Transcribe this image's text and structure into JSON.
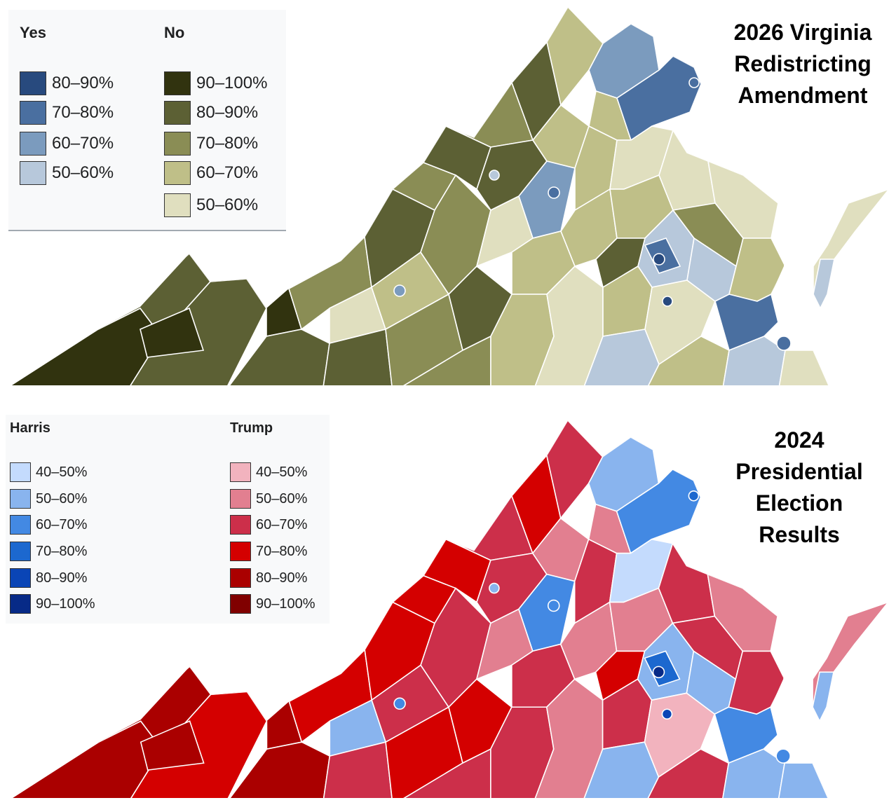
{
  "map_top": {
    "title_lines": [
      "2026 Virginia",
      "Redistricting",
      "Amendment"
    ],
    "legend": {
      "yes_header": "Yes",
      "no_header": "No",
      "yes_items": [
        {
          "label": "80–90%",
          "color": "#284a7e"
        },
        {
          "label": "70–80%",
          "color": "#4a6fa0"
        },
        {
          "label": "60–70%",
          "color": "#7b9bbe"
        },
        {
          "label": "50–60%",
          "color": "#b7c8db"
        }
      ],
      "no_items": [
        {
          "label": "90–100%",
          "color": "#31330f"
        },
        {
          "label": "80–90%",
          "color": "#5c6034"
        },
        {
          "label": "70–80%",
          "color": "#8a8d55"
        },
        {
          "label": "60–70%",
          "color": "#bfbf88"
        },
        {
          "label": "50–60%",
          "color": "#e0dfbf"
        }
      ]
    }
  },
  "map_bottom": {
    "title_lines": [
      "2024",
      "Presidential",
      "Election",
      "Results"
    ],
    "legend": {
      "harris_header": "Harris",
      "trump_header": "Trump",
      "harris_items": [
        {
          "label": "40–50%",
          "color": "#c4dbfd"
        },
        {
          "label": "50–60%",
          "color": "#89b4ee"
        },
        {
          "label": "60–70%",
          "color": "#4389e3"
        },
        {
          "label": "70–80%",
          "color": "#1c68cf"
        },
        {
          "label": "80–90%",
          "color": "#0a45b6"
        },
        {
          "label": "90–100%",
          "color": "#072a87"
        }
      ],
      "trump_items": [
        {
          "label": "40–50%",
          "color": "#f2b3be"
        },
        {
          "label": "50–60%",
          "color": "#e27f90"
        },
        {
          "label": "60–70%",
          "color": "#cc2f4a"
        },
        {
          "label": "70–80%",
          "color": "#d40000"
        },
        {
          "label": "80–90%",
          "color": "#aa0000"
        },
        {
          "label": "90–100%",
          "color": "#800000"
        }
      ]
    }
  }
}
